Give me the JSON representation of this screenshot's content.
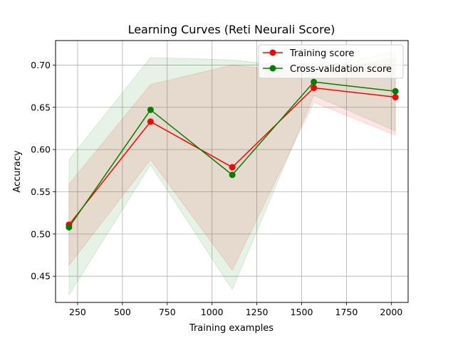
{
  "chart_data": {
    "type": "line",
    "title": "Learning Curves (Reti Neurali Score)",
    "xlabel": "Training examples",
    "ylabel": "Accuracy",
    "xlim": [
      127,
      2094
    ],
    "ylim": [
      0.419,
      0.729
    ],
    "xticks": [
      250,
      500,
      750,
      1000,
      1250,
      1500,
      1750,
      2000
    ],
    "yticks": [
      0.45,
      0.5,
      0.55,
      0.6,
      0.65,
      0.7
    ],
    "xtick_labels": [
      "250",
      "500",
      "750",
      "1000",
      "1250",
      "1500",
      "1750",
      "2000"
    ],
    "ytick_labels": [
      "0.45",
      "0.50",
      "0.55",
      "0.60",
      "0.65",
      "0.70"
    ],
    "grid": true,
    "legend_position": "top-right",
    "x": [
      202,
      657,
      1113,
      1568,
      2023
    ],
    "series": [
      {
        "name": "Training score",
        "color": "#ff0000",
        "marker": "circle",
        "values": [
          0.511,
          0.633,
          0.579,
          0.673,
          0.662
        ],
        "band_lower": [
          0.463,
          0.588,
          0.457,
          0.656,
          0.617
        ],
        "band_upper": [
          0.559,
          0.677,
          0.7,
          0.69,
          0.708
        ],
        "band_color": "#ff0000",
        "band_opacity": 0.1
      },
      {
        "name": "Cross-validation score",
        "color": "#008000",
        "marker": "circle",
        "values": [
          0.508,
          0.647,
          0.57,
          0.68,
          0.669
        ],
        "band_lower": [
          0.428,
          0.582,
          0.434,
          0.664,
          0.622
        ],
        "band_upper": [
          0.588,
          0.709,
          0.706,
          0.696,
          0.716
        ],
        "band_color": "#008000",
        "band_opacity": 0.1
      }
    ]
  }
}
